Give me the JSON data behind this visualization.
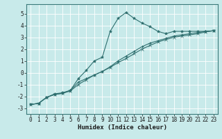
{
  "xlabel": "Humidex (Indice chaleur)",
  "background_color": "#c8eaea",
  "grid_color": "#ffffff",
  "line_color": "#2e6e6e",
  "xlim": [
    -0.5,
    23.5
  ],
  "ylim": [
    -3.5,
    5.8
  ],
  "yticks": [
    -3,
    -2,
    -1,
    0,
    1,
    2,
    3,
    4,
    5
  ],
  "xticks": [
    0,
    1,
    2,
    3,
    4,
    5,
    6,
    7,
    8,
    9,
    10,
    11,
    12,
    13,
    14,
    15,
    16,
    17,
    18,
    19,
    20,
    21,
    22,
    23
  ],
  "series1_x": [
    0,
    1,
    2,
    3,
    4,
    5,
    6,
    7,
    8,
    9,
    10,
    11,
    12,
    13,
    14,
    15,
    16,
    17,
    18,
    19,
    20,
    21,
    22,
    23
  ],
  "series1_y": [
    -2.7,
    -2.6,
    -2.1,
    -1.8,
    -1.7,
    -1.5,
    -0.5,
    0.2,
    1.0,
    1.3,
    3.5,
    4.6,
    5.1,
    4.6,
    4.2,
    3.9,
    3.5,
    3.3,
    3.5,
    3.5,
    3.5,
    3.5,
    3.5,
    3.55
  ],
  "series2_x": [
    0,
    1,
    2,
    3,
    4,
    5,
    6,
    7,
    8,
    9,
    10,
    11,
    12,
    13,
    14,
    15,
    16,
    17,
    18,
    19,
    20,
    21,
    22,
    23
  ],
  "series2_y": [
    -2.7,
    -2.6,
    -2.1,
    -1.85,
    -1.75,
    -1.5,
    -0.8,
    -0.5,
    -0.2,
    0.1,
    0.5,
    1.0,
    1.4,
    1.8,
    2.2,
    2.5,
    2.7,
    2.9,
    3.1,
    3.2,
    3.3,
    3.4,
    3.5,
    3.55
  ],
  "series3_x": [
    0,
    1,
    2,
    3,
    4,
    5,
    6,
    7,
    8,
    9,
    10,
    11,
    12,
    13,
    14,
    15,
    16,
    17,
    18,
    19,
    20,
    21,
    22,
    23
  ],
  "series3_y": [
    -2.7,
    -2.6,
    -2.1,
    -1.85,
    -1.75,
    -1.55,
    -1.0,
    -0.6,
    -0.2,
    0.1,
    0.45,
    0.85,
    1.2,
    1.6,
    2.0,
    2.3,
    2.6,
    2.8,
    3.0,
    3.1,
    3.2,
    3.3,
    3.45,
    3.55
  ],
  "tick_fontsize": 5.5,
  "xlabel_fontsize": 6.5
}
